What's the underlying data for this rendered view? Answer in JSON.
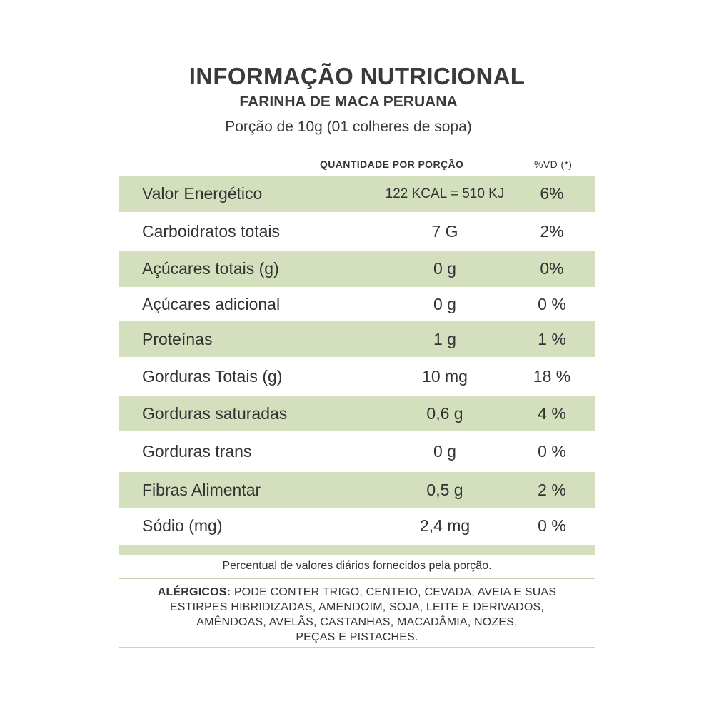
{
  "header": {
    "title": "INFORMAÇÃO NUTRICIONAL",
    "subtitle": "FARINHA DE MACA PERUANA",
    "portion": "Porção de 10g (01 colheres de sopa)"
  },
  "columns": {
    "quantity": "QUANTIDADE POR PORÇÃO",
    "daily_value": "%VD (*)"
  },
  "rows": [
    {
      "name": "Valor Energético",
      "quantity": "122 KCAL = 510 KJ",
      "daily_value": "6%"
    },
    {
      "name": "Carboidratos totais",
      "quantity": "7 G",
      "daily_value": "2%"
    },
    {
      "name": "Açúcares totais (g)",
      "quantity": "0 g",
      "daily_value": "0%"
    },
    {
      "name": "Açúcares adicional",
      "quantity": "0 g",
      "daily_value": "0 %"
    },
    {
      "name": "Proteínas",
      "quantity": "1 g",
      "daily_value": "1 %"
    },
    {
      "name": "Gorduras Totais (g)",
      "quantity": "10 mg",
      "daily_value": "18 %"
    },
    {
      "name": "Gorduras saturadas",
      "quantity": "0,6 g",
      "daily_value": "4 %"
    },
    {
      "name": "Gorduras trans",
      "quantity": "0 g",
      "daily_value": "0 %"
    },
    {
      "name": "Fibras Alimentar",
      "quantity": "0,5 g",
      "daily_value": "2 %"
    },
    {
      "name": "Sódio (mg)",
      "quantity": "2,4 mg",
      "daily_value": "0 %"
    }
  ],
  "footnote": "Percentual de valores diários fornecidos pela porção.",
  "allergens": {
    "label": "ALÉRGICOS:",
    "line1": "PODE CONTER TRIGO, CENTEIO, CEVADA, AVEIA E SUAS",
    "line2": "ESTIRPES HIBRIDIZADAS, AMENDOIM, SOJA, LEITE E DERIVADOS,",
    "line3": "AMÊNDOAS, AVELÃS, CASTANHAS, MACADÂMIA, NOZES,",
    "line4": "PEÇAS E PISTACHES."
  },
  "colors": {
    "row_shade": "#d3dfbd",
    "text": "#333333",
    "rule": "#c9d4b2"
  }
}
